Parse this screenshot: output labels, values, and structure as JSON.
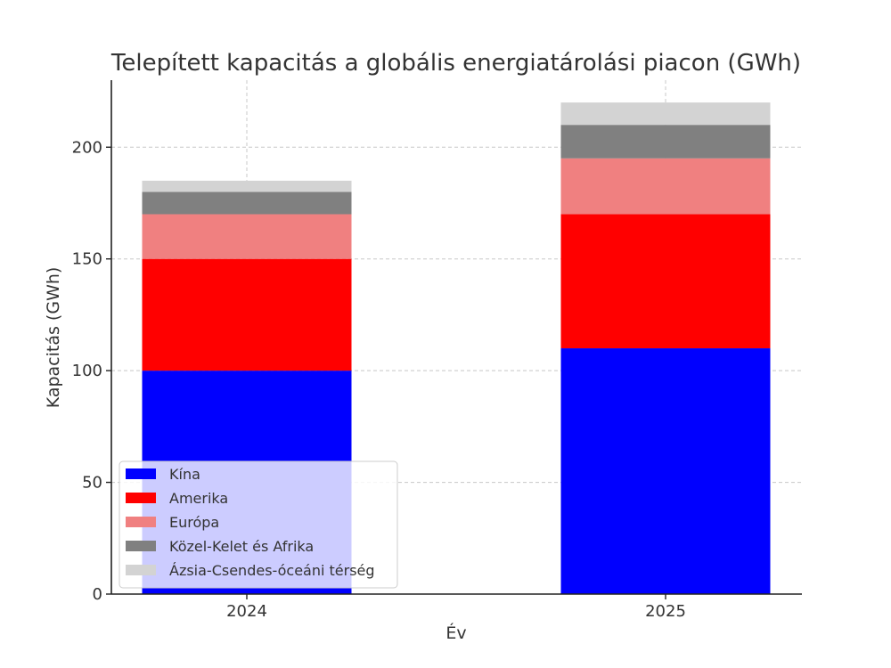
{
  "chart_data": {
    "type": "bar",
    "stacked": true,
    "title": "Telepített kapacitás a globális energiatárolási piacon (GWh)",
    "xlabel": "Év",
    "ylabel": "Kapacitás (GWh)",
    "categories": [
      "2024",
      "2025"
    ],
    "ylim": [
      0,
      230
    ],
    "yticks": [
      0,
      50,
      100,
      150,
      200
    ],
    "grid": true,
    "legend_position": "bottom-left",
    "series": [
      {
        "name": "Kína",
        "color": "#0000ff",
        "values": [
          100,
          110
        ]
      },
      {
        "name": "Amerika",
        "color": "#ff0000",
        "values": [
          50,
          60
        ]
      },
      {
        "name": "Európa",
        "color": "#f08080",
        "values": [
          20,
          25
        ]
      },
      {
        "name": "Közel-Kelet és Afrika",
        "color": "#808080",
        "values": [
          10,
          15
        ]
      },
      {
        "name": "Ázsia-Csendes-óceáni térség",
        "color": "#d3d3d3",
        "values": [
          5,
          10
        ]
      }
    ]
  }
}
